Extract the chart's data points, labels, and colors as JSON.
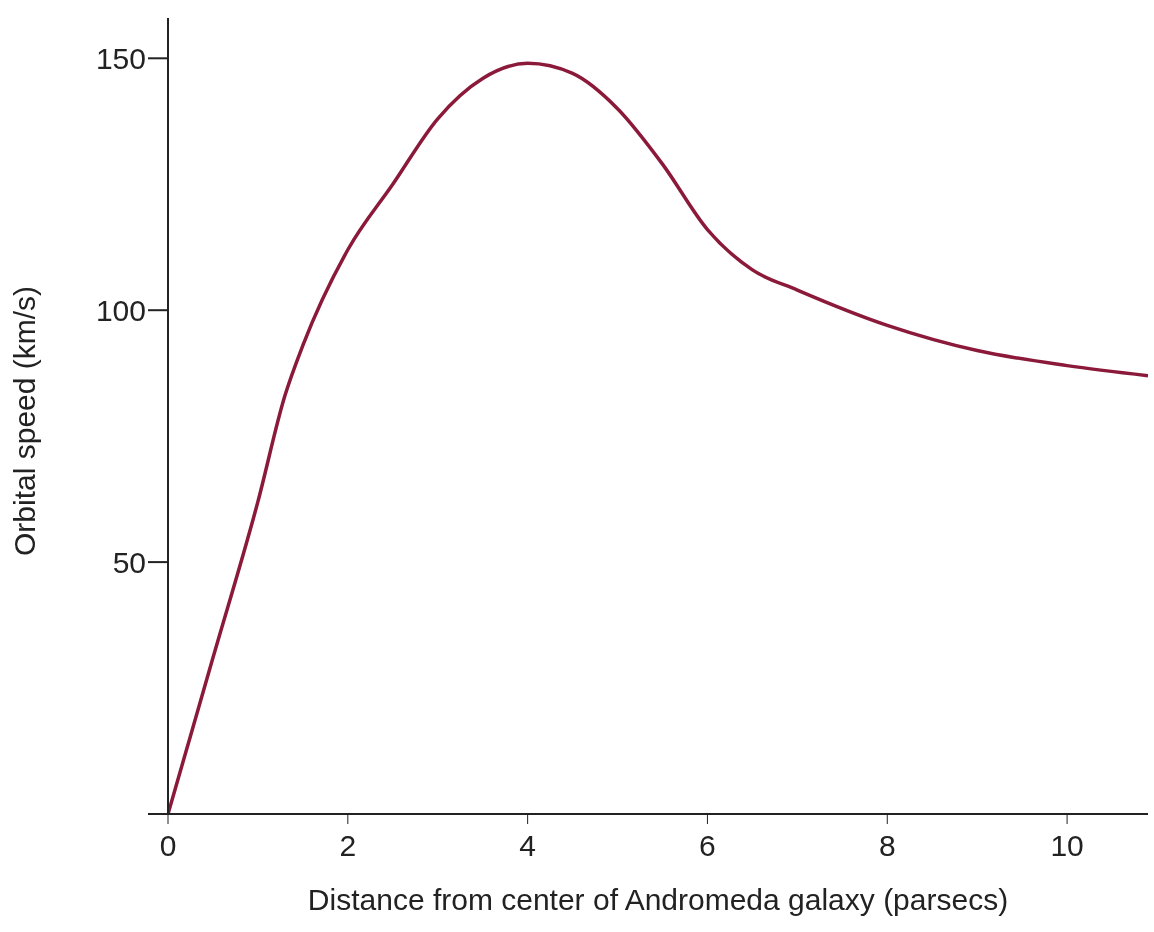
{
  "chart_data": {
    "type": "line",
    "xlabel": "Distance from center of Andromeda galaxy (parsecs)",
    "ylabel": "Orbital speed (km/s)",
    "x": [
      0,
      0.5,
      1,
      1.3,
      1.5,
      2,
      2.5,
      3,
      3.5,
      4,
      4.5,
      5,
      5.5,
      6,
      6.5,
      7,
      8,
      9,
      10,
      10.9
    ],
    "series": [
      {
        "color": "#8b1a3a",
        "values": [
          0,
          31,
          62,
          83,
          93,
          112,
          125,
          138,
          146,
          149,
          147,
          140,
          129,
          116,
          108,
          104,
          97,
          92,
          89,
          87
        ]
      }
    ],
    "xlim": [
      0,
      10.9
    ],
    "xticks": [
      0,
      2,
      4,
      6,
      8,
      10
    ],
    "ylim": [
      0,
      158
    ],
    "yticks": [
      {
        "value": 0,
        "label": null
      },
      50,
      100,
      150
    ],
    "grid": false,
    "legend": false,
    "marker": "none",
    "line_style": "solid"
  }
}
